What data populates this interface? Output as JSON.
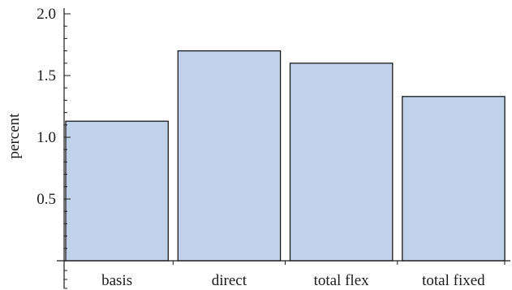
{
  "chart_data": {
    "type": "bar",
    "categories": [
      "basis",
      "direct",
      "total flex",
      "total fixed"
    ],
    "values": [
      1.13,
      1.7,
      1.6,
      1.33
    ],
    "title": "",
    "xlabel": "",
    "ylabel": "percent",
    "ylim": [
      0,
      2.0
    ],
    "yticks": [
      "0.5",
      "1.0",
      "1.5",
      "2.0"
    ],
    "ytick_values": [
      0.5,
      1.0,
      1.5,
      2.0
    ],
    "minor_tick_step": 0.1,
    "bar_color": "#c0d1ea",
    "grid": false,
    "legend": "none"
  }
}
